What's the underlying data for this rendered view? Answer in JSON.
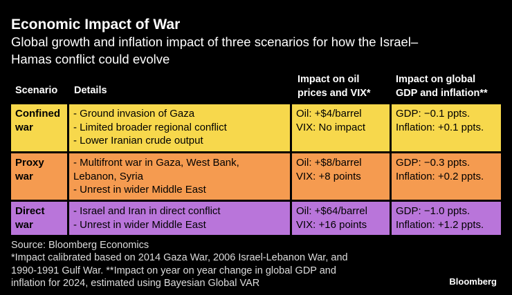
{
  "header": {
    "title": "Economic Impact of War",
    "subtitle": [
      "Global growth and inflation impact of three scenarios for how the Israel–",
      "Hamas conflict could evolve"
    ]
  },
  "table": {
    "columns": [
      "Scenario",
      "Details",
      [
        "Impact on oil",
        "prices and VIX*"
      ],
      [
        "Impact on global",
        "GDP and inflation**"
      ]
    ],
    "rows": [
      {
        "scenario": [
          "Confined",
          "war"
        ],
        "details": [
          "- Ground invasion of Gaza",
          "- Limited broader regional conflict",
          "- Lower Iranian crude output"
        ],
        "oil": [
          "Oil: +$4/barrel",
          "VIX: No impact"
        ],
        "gdp": [
          "GDP: −0.1 ppts.",
          "Inflation: +0.1 ppts."
        ]
      },
      {
        "scenario": [
          "Proxy",
          "war"
        ],
        "details": [
          "- Multifront war in Gaza, West Bank,",
          "Lebanon, Syria",
          "- Unrest in wider Middle East"
        ],
        "oil": [
          "Oil: +$8/barrel",
          "VIX: +8 points"
        ],
        "gdp": [
          "GDP: −0.3 ppts.",
          "Inflation: +0.2 ppts."
        ]
      },
      {
        "scenario": [
          "Direct",
          "war"
        ],
        "details": [
          "- Israel and Iran in direct conflict",
          "- Unrest in wider Middle East"
        ],
        "oil": [
          "Oil: +$64/barrel",
          "VIX: +16 points"
        ],
        "gdp": [
          "GDP: −1.0 ppts.",
          "Inflation: +1.2 ppts."
        ]
      }
    ]
  },
  "footer": {
    "source": "Source: Bloomberg Economics",
    "notes": [
      "*Impact calibrated based on 2014 Gaza War, 2006 Israel-Lebanon War, and",
      "1990-1991 Gulf War. **Impact on year on year change in global GDP and",
      "inflation for 2024, estimated using Bayesian Global VAR"
    ],
    "logo": "Bloomberg"
  }
}
